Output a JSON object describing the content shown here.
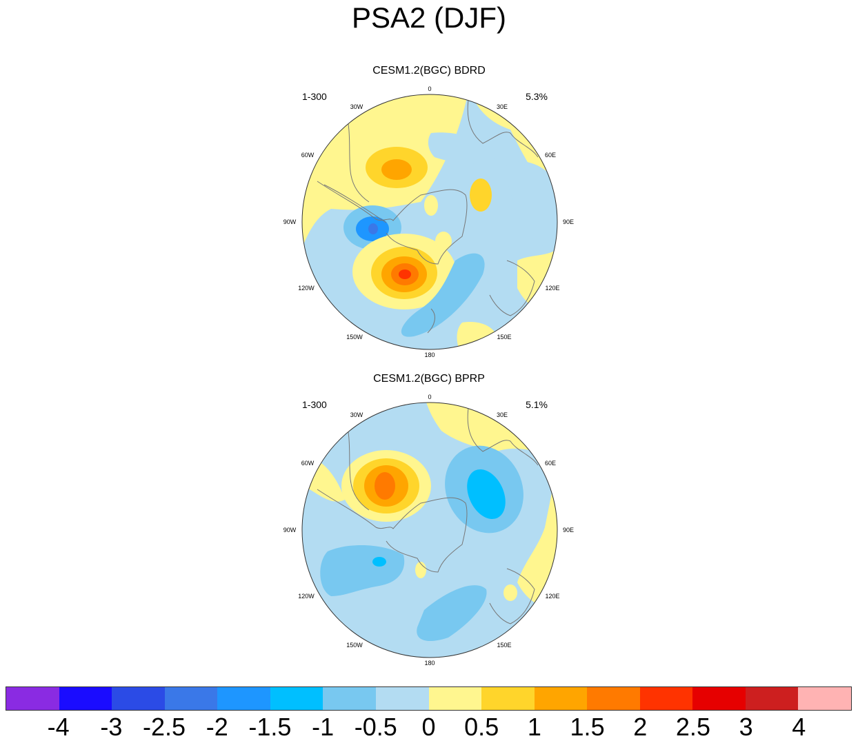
{
  "title": "PSA2 (DJF)",
  "panels": [
    {
      "title": "CESM1.2(BGC) BDRD",
      "left_label": "1-300",
      "right_label": "5.3%"
    },
    {
      "title": "CESM1.2(BGC) BPRP",
      "left_label": "1-300",
      "right_label": "5.1%"
    }
  ],
  "lon_labels": [
    "0",
    "30E",
    "60E",
    "90E",
    "120E",
    "150E",
    "180",
    "150W",
    "120W",
    "90W",
    "60W",
    "30W"
  ],
  "colorbar": {
    "colors": [
      "#8a2be2",
      "#1a0cff",
      "#2b4be6",
      "#3a78e8",
      "#1e96ff",
      "#00bfff",
      "#78c8f0",
      "#b3dcf2",
      "#fff68f",
      "#ffd52b",
      "#ffa500",
      "#ff7a00",
      "#ff3300",
      "#e60000",
      "#cd1f1f",
      "#ffb3b3"
    ],
    "labels": [
      "-4",
      "-3",
      "-2.5",
      "-2",
      "-1.5",
      "-1",
      "-0.5",
      "0",
      "0.5",
      "1",
      "1.5",
      "2",
      "2.5",
      "3",
      "4"
    ]
  }
}
